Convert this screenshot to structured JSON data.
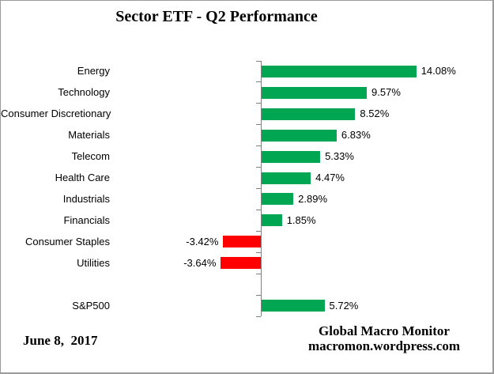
{
  "chart_data": {
    "type": "bar",
    "orientation": "horizontal",
    "title": "Sector ETF - Q2 Performance",
    "xlabel": "",
    "ylabel": "",
    "grid": false,
    "legend": false,
    "xlim": [
      -5,
      15
    ],
    "colors": {
      "positive_bar": "#00A651",
      "negative_bar": "#FF0000",
      "axis": "#808080"
    },
    "rows": [
      {
        "label": "Energy",
        "value": 14.08,
        "display": "14.08%"
      },
      {
        "label": "Technology",
        "value": 9.57,
        "display": "9.57%"
      },
      {
        "label": "Consumer Discretionary",
        "value": 8.52,
        "display": "8.52%"
      },
      {
        "label": "Materials",
        "value": 6.83,
        "display": "6.83%"
      },
      {
        "label": "Telecom",
        "value": 5.33,
        "display": "5.33%"
      },
      {
        "label": "Health Care",
        "value": 4.47,
        "display": "4.47%"
      },
      {
        "label": "Industrials",
        "value": 2.89,
        "display": "2.89%"
      },
      {
        "label": "Financials",
        "value": 1.85,
        "display": "1.85%"
      },
      {
        "label": "Consumer Staples",
        "value": -3.42,
        "display": "-3.42%"
      },
      {
        "label": "Utilities",
        "value": -3.64,
        "display": "-3.64%"
      },
      {
        "label": "S&P500",
        "value": 5.72,
        "display": "5.72%",
        "separated": true
      }
    ]
  },
  "footer": {
    "date": "June 8,  2017",
    "credit_line1": "Global Macro Monitor",
    "credit_line2": "macromon.wordpress.com"
  }
}
